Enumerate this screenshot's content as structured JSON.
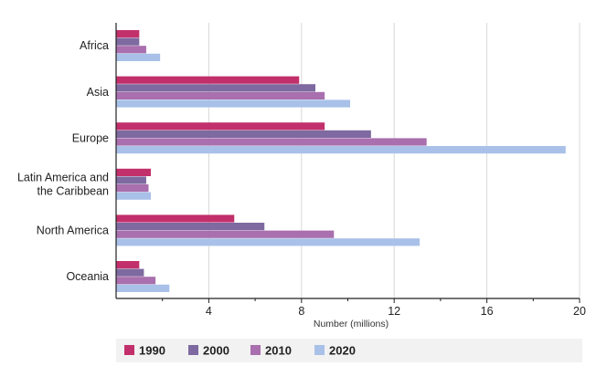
{
  "chart_data": {
    "type": "bar",
    "orientation": "horizontal",
    "categories": [
      "Africa",
      "Asia",
      "Europe",
      "Latin America and the Caribbean",
      "North America",
      "Oceania"
    ],
    "category_lines": [
      [
        "Africa"
      ],
      [
        "Asia"
      ],
      [
        "Europe"
      ],
      [
        "Latin America and",
        "the Caribbean"
      ],
      [
        "North America"
      ],
      [
        "Oceania"
      ]
    ],
    "series": [
      {
        "name": "1990",
        "color": "#c2306b",
        "values": [
          1.0,
          7.9,
          9.0,
          1.5,
          5.1,
          1.0
        ]
      },
      {
        "name": "2000",
        "color": "#7e6aa0",
        "values": [
          1.0,
          8.6,
          11.0,
          1.3,
          6.4,
          1.2
        ]
      },
      {
        "name": "2010",
        "color": "#a96fae",
        "values": [
          1.3,
          9.0,
          13.4,
          1.4,
          9.4,
          1.7
        ]
      },
      {
        "name": "2020",
        "color": "#a9c1e8",
        "values": [
          1.9,
          10.1,
          19.4,
          1.5,
          13.1,
          2.3
        ]
      }
    ],
    "xlabel": "Number (millions)",
    "ylabel": "",
    "xlim": [
      0,
      20
    ],
    "xticks": [
      4,
      8,
      12,
      16,
      20
    ],
    "grid": "vertical",
    "legend_position": "bottom",
    "legend_background": "#f2f2f2",
    "gridline_color": "#d9d9d9",
    "axis_color": "#222222"
  }
}
